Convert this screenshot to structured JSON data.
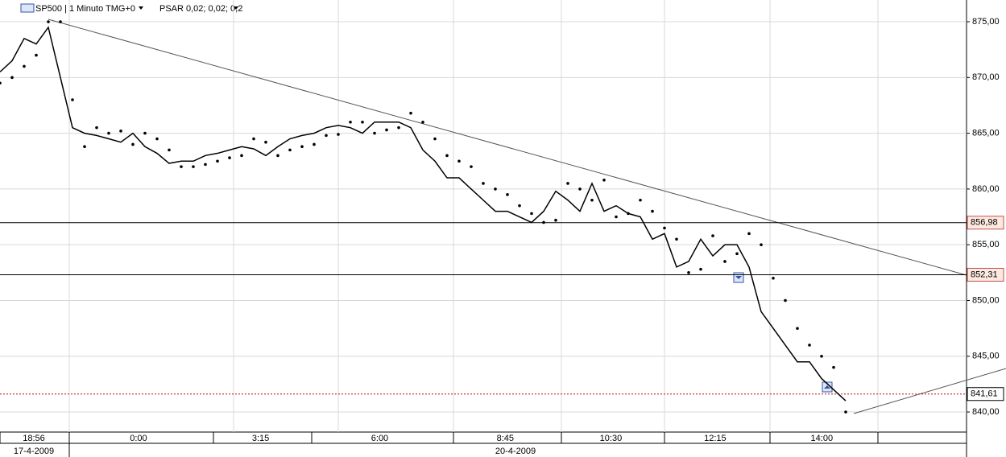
{
  "chart_data": {
    "type": "line",
    "title": "SP500 | 1 Minuto TMG+0",
    "indicator": "PSAR 0,02; 0,02; 0,2",
    "time_labels": [
      "18:56",
      "0:00",
      "3:15",
      "6:00",
      "8:45",
      "10:30",
      "12:15",
      "14:00"
    ],
    "date_labels": [
      "17-4-2009",
      "20-4-2009"
    ],
    "ylim": [
      838.2,
      876.95
    ],
    "yticks": [
      {
        "value": 840,
        "label": "840,00"
      },
      {
        "value": 845,
        "label": "845,00"
      },
      {
        "value": 850,
        "label": "850,00"
      },
      {
        "value": 855,
        "label": "855,00"
      },
      {
        "value": 860,
        "label": "860,00"
      },
      {
        "value": 865,
        "label": "865,00"
      },
      {
        "value": 870,
        "label": "870,00"
      },
      {
        "value": 875,
        "label": "875,00"
      }
    ],
    "levels": [
      {
        "value": 856.98,
        "label": "856,98"
      },
      {
        "value": 852.31,
        "label": "852,31"
      },
      {
        "value": 841.61,
        "label": "841,61",
        "color": "#c00000"
      }
    ],
    "series": [
      {
        "name": "SP500",
        "color": "#000000",
        "values": [
          870.5,
          871.5,
          873.5,
          873,
          874.5,
          870,
          865.5,
          865,
          864.8,
          864.5,
          864.2,
          865,
          863.8,
          863.2,
          862.3,
          862.5,
          862.5,
          863,
          863.2,
          863.5,
          863.8,
          863.6,
          863,
          863.8,
          864.5,
          864.8,
          865,
          865.5,
          865.7,
          865.5,
          865,
          866,
          866,
          866,
          865.5,
          863.5,
          862.5,
          861,
          861,
          860,
          859,
          858,
          858,
          857.5,
          857,
          858,
          859.8,
          859,
          858,
          860.5,
          858,
          858.5,
          857.8,
          857.5,
          855.5,
          856,
          853,
          853.5,
          855.5,
          854,
          855,
          855,
          853,
          849,
          847.5,
          846,
          844.5,
          844.5,
          843,
          842,
          841
        ]
      },
      {
        "name": "PSAR",
        "color": "#000000",
        "values": [
          869.5,
          870,
          871,
          872,
          875,
          875,
          868,
          863.8,
          865.5,
          865,
          865.2,
          864,
          865,
          864.5,
          863.5,
          862,
          862,
          862.2,
          862.5,
          862.8,
          863,
          864.5,
          864.2,
          863,
          863.5,
          863.8,
          864,
          864.8,
          864.9,
          866,
          866,
          865,
          865.3,
          865.5,
          866.8,
          866,
          864.5,
          863,
          862.5,
          862,
          860.5,
          860,
          859.5,
          858.5,
          857.8,
          857,
          857.2,
          860.5,
          860,
          859,
          860.8,
          857.5,
          857.8,
          859,
          858,
          856.5,
          855.5,
          852.5,
          852.8,
          855.8,
          853.5,
          854.2,
          856,
          855,
          852,
          850,
          847.5,
          846,
          845,
          844,
          840
        ]
      }
    ]
  }
}
